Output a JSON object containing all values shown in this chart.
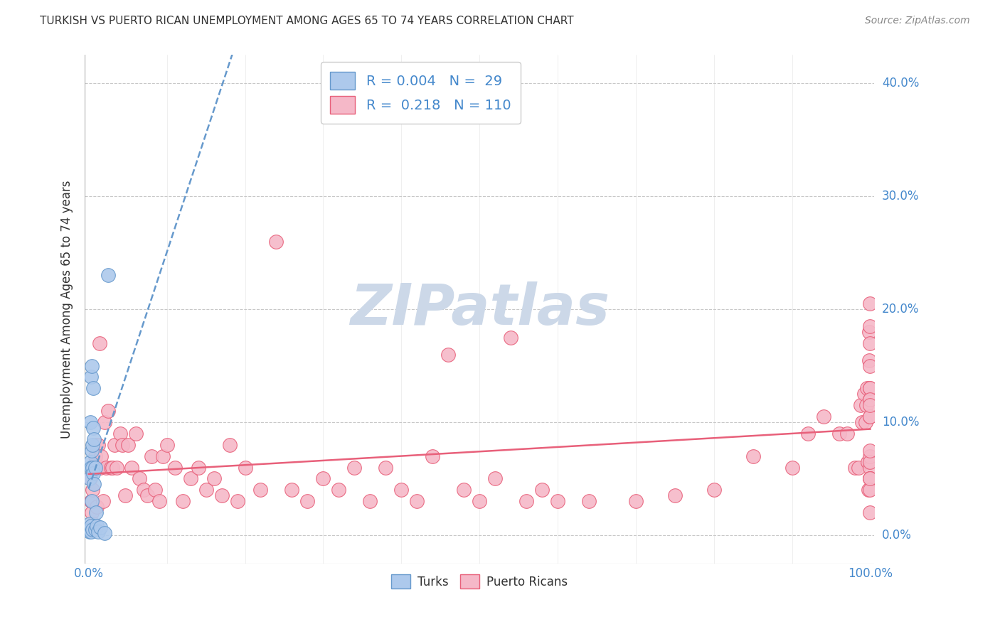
{
  "title": "TURKISH VS PUERTO RICAN UNEMPLOYMENT AMONG AGES 65 TO 74 YEARS CORRELATION CHART",
  "source": "Source: ZipAtlas.com",
  "ylabel": "Unemployment Among Ages 65 to 74 years",
  "xlim": [
    -0.005,
    1.005
  ],
  "ylim": [
    -0.025,
    0.425
  ],
  "xtick_positions": [
    0.0,
    1.0
  ],
  "xticklabels": [
    "0.0%",
    "100.0%"
  ],
  "yticks": [
    0.0,
    0.1,
    0.2,
    0.3,
    0.4
  ],
  "yticklabels": [
    "0.0%",
    "10.0%",
    "20.0%",
    "30.0%",
    "40.0%"
  ],
  "grid_color": "#c8c8c8",
  "background_color": "#ffffff",
  "turk_fill_color": "#adc9ec",
  "turk_edge_color": "#6699cc",
  "pr_fill_color": "#f5b8c8",
  "pr_edge_color": "#e8607a",
  "turk_line_color": "#6699cc",
  "pr_line_color": "#e8607a",
  "turk_R": 0.004,
  "turk_N": 29,
  "pr_R": 0.218,
  "pr_N": 110,
  "watermark": "ZIPatlas",
  "watermark_color": "#ccd8e8",
  "label_color": "#4488cc",
  "title_color": "#333333",
  "source_color": "#888888",
  "turk_x": [
    0.001,
    0.001,
    0.001,
    0.002,
    0.002,
    0.002,
    0.003,
    0.003,
    0.003,
    0.003,
    0.004,
    0.004,
    0.004,
    0.005,
    0.005,
    0.005,
    0.006,
    0.006,
    0.006,
    0.007,
    0.007,
    0.008,
    0.008,
    0.009,
    0.01,
    0.012,
    0.015,
    0.02,
    0.025
  ],
  "turk_y": [
    0.003,
    0.01,
    0.05,
    0.005,
    0.065,
    0.1,
    0.003,
    0.008,
    0.06,
    0.14,
    0.03,
    0.075,
    0.15,
    0.005,
    0.06,
    0.08,
    0.055,
    0.095,
    0.13,
    0.045,
    0.085,
    0.005,
    0.06,
    0.02,
    0.008,
    0.003,
    0.007,
    0.002,
    0.23
  ],
  "pr_x": [
    0.002,
    0.003,
    0.004,
    0.005,
    0.006,
    0.006,
    0.007,
    0.008,
    0.009,
    0.01,
    0.011,
    0.012,
    0.013,
    0.014,
    0.015,
    0.016,
    0.018,
    0.02,
    0.022,
    0.025,
    0.028,
    0.03,
    0.033,
    0.036,
    0.04,
    0.043,
    0.047,
    0.05,
    0.055,
    0.06,
    0.065,
    0.07,
    0.075,
    0.08,
    0.085,
    0.09,
    0.095,
    0.1,
    0.11,
    0.12,
    0.13,
    0.14,
    0.15,
    0.16,
    0.17,
    0.18,
    0.19,
    0.2,
    0.22,
    0.24,
    0.26,
    0.28,
    0.3,
    0.32,
    0.34,
    0.36,
    0.38,
    0.4,
    0.42,
    0.44,
    0.46,
    0.48,
    0.5,
    0.52,
    0.54,
    0.56,
    0.58,
    0.6,
    0.64,
    0.7,
    0.75,
    0.8,
    0.85,
    0.9,
    0.92,
    0.94,
    0.96,
    0.97,
    0.98,
    0.985,
    0.988,
    0.99,
    0.992,
    0.994,
    0.995,
    0.996,
    0.997,
    0.998,
    0.999,
    0.999,
    1.0,
    1.0,
    1.0,
    1.0,
    1.0,
    1.0,
    1.0,
    1.0,
    1.0,
    1.0,
    1.0,
    1.0,
    1.0,
    1.0,
    1.0,
    1.0,
    1.0,
    1.0,
    1.0,
    1.0
  ],
  "pr_y": [
    0.05,
    0.03,
    0.02,
    0.04,
    0.06,
    0.01,
    0.005,
    0.07,
    0.08,
    0.025,
    0.06,
    0.08,
    0.06,
    0.17,
    0.06,
    0.07,
    0.03,
    0.1,
    0.06,
    0.11,
    0.06,
    0.06,
    0.08,
    0.06,
    0.09,
    0.08,
    0.035,
    0.08,
    0.06,
    0.09,
    0.05,
    0.04,
    0.035,
    0.07,
    0.04,
    0.03,
    0.07,
    0.08,
    0.06,
    0.03,
    0.05,
    0.06,
    0.04,
    0.05,
    0.035,
    0.08,
    0.03,
    0.06,
    0.04,
    0.26,
    0.04,
    0.03,
    0.05,
    0.04,
    0.06,
    0.03,
    0.06,
    0.04,
    0.03,
    0.07,
    0.16,
    0.04,
    0.03,
    0.05,
    0.175,
    0.03,
    0.04,
    0.03,
    0.03,
    0.03,
    0.035,
    0.04,
    0.07,
    0.06,
    0.09,
    0.105,
    0.09,
    0.09,
    0.06,
    0.06,
    0.115,
    0.1,
    0.125,
    0.1,
    0.115,
    0.13,
    0.065,
    0.04,
    0.18,
    0.155,
    0.13,
    0.205,
    0.105,
    0.12,
    0.13,
    0.15,
    0.17,
    0.06,
    0.07,
    0.05,
    0.12,
    0.05,
    0.02,
    0.105,
    0.115,
    0.04,
    0.185,
    0.065,
    0.075,
    0.05
  ]
}
